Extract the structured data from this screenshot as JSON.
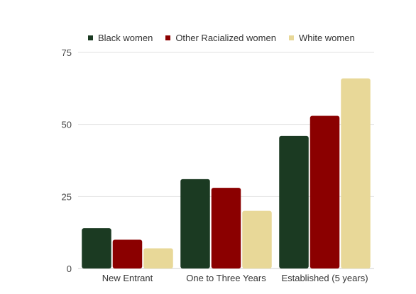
{
  "chart_data": {
    "type": "bar",
    "title": "",
    "xlabel": "",
    "ylabel": "",
    "categories": [
      "New Entrant",
      "One to Three Years",
      "Established (5 years)"
    ],
    "series": [
      {
        "name": "Black women",
        "color": "#1b3a22",
        "values": [
          14,
          31,
          46
        ]
      },
      {
        "name": "Other Racialized women",
        "color": "#8b0000",
        "values": [
          10,
          28,
          53
        ]
      },
      {
        "name": "White women",
        "color": "#e8d898",
        "values": [
          7,
          20,
          66
        ]
      }
    ],
    "ylim": [
      0,
      75
    ],
    "yticks": [
      0,
      25,
      50,
      75
    ],
    "grid": true,
    "legend_position": "top"
  }
}
